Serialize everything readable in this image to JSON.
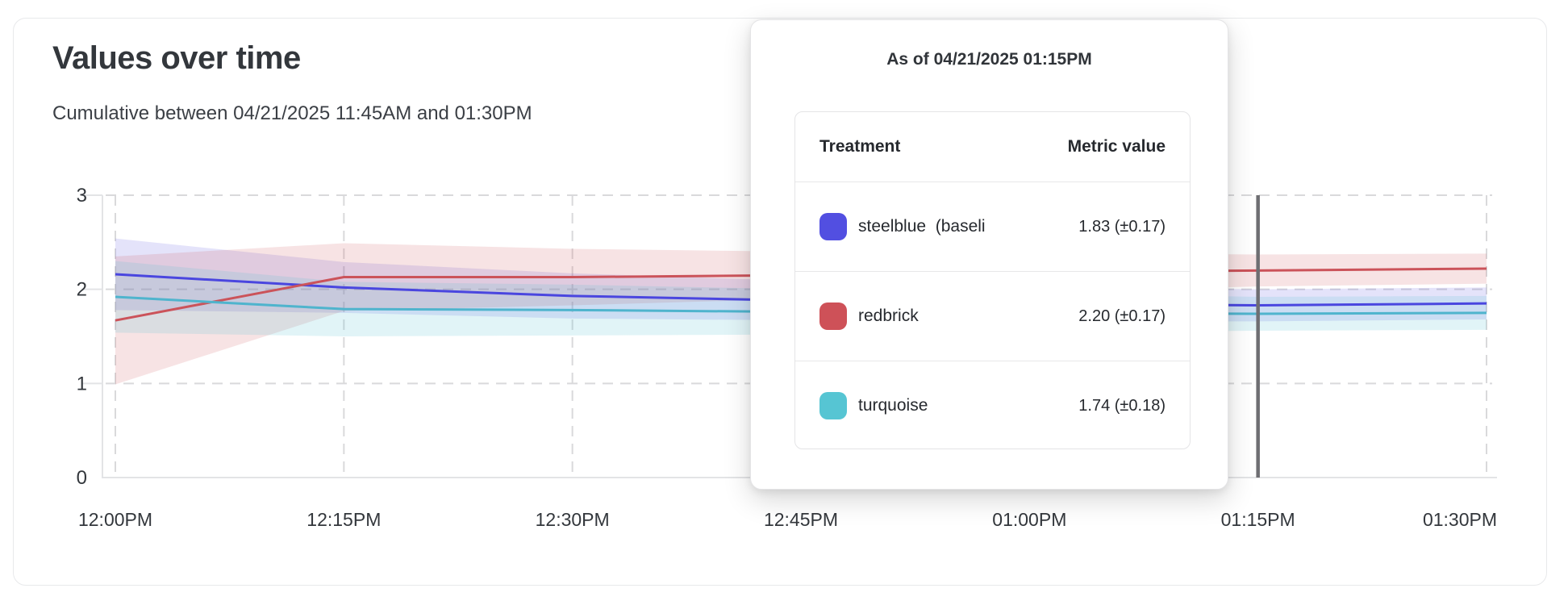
{
  "card": {
    "title": "Values over time",
    "subtitle": "Cumulative between 04/21/2025 11:45AM and 01:30PM"
  },
  "tooltip": {
    "title": "As of 04/21/2025 01:15PM",
    "columns": [
      "Treatment",
      "Metric value"
    ],
    "rows": [
      {
        "swatch": "#524FE1",
        "label": "steelblue  (baseli",
        "value": "1.83 (±0.17)"
      },
      {
        "swatch": "#CE5158",
        "label": "redbrick",
        "value": "2.20 (±0.17)"
      },
      {
        "swatch": "#56C5D3",
        "label": "turquoise",
        "value": "1.74 (±0.18)"
      }
    ]
  },
  "chart_data": {
    "type": "line",
    "title": "Values over time",
    "subtitle": "Cumulative between 04/21/2025 11:45AM and 01:30PM",
    "x_tick_labels": [
      "12:00PM",
      "12:15PM",
      "12:30PM",
      "12:45PM",
      "01:00PM",
      "01:15PM",
      "01:30PM"
    ],
    "y_ticks": [
      0,
      1,
      2,
      3
    ],
    "ylim": [
      0,
      3
    ],
    "grid": "dashed",
    "legend": "none",
    "hover_time": "01:15PM",
    "hover_values": {
      "steelblue": "1.83 (±0.17)",
      "redbrick": "2.20 (±0.17)",
      "turquoise": "1.74 (±0.18)"
    },
    "series": [
      {
        "name": "steelblue",
        "line_color": "#4A46DF",
        "band_color": "rgba(85,80,225,0.16)",
        "values": [
          2.16,
          2.02,
          1.93,
          1.88,
          1.85,
          1.83,
          1.85
        ],
        "ci": [
          0.38,
          0.27,
          0.24,
          0.21,
          0.19,
          0.17,
          0.17
        ]
      },
      {
        "name": "redbrick",
        "line_color": "#CB535A",
        "band_color": "rgba(206,81,88,0.16)",
        "values": [
          1.67,
          2.13,
          2.13,
          2.15,
          2.18,
          2.2,
          2.22
        ],
        "ci": [
          0.68,
          0.36,
          0.3,
          0.25,
          0.21,
          0.17,
          0.16
        ]
      },
      {
        "name": "turquoise",
        "line_color": "#4FB4CD",
        "band_color": "rgba(90,195,211,0.18)",
        "values": [
          1.92,
          1.79,
          1.78,
          1.76,
          1.75,
          1.74,
          1.75
        ],
        "ci": [
          0.38,
          0.29,
          0.27,
          0.24,
          0.21,
          0.18,
          0.18
        ]
      }
    ],
    "colors": {
      "grid": "#D9D9DB",
      "axis": "#E3E4E6",
      "cursor": "#6E6E72",
      "tick_text": "#33373C"
    }
  }
}
